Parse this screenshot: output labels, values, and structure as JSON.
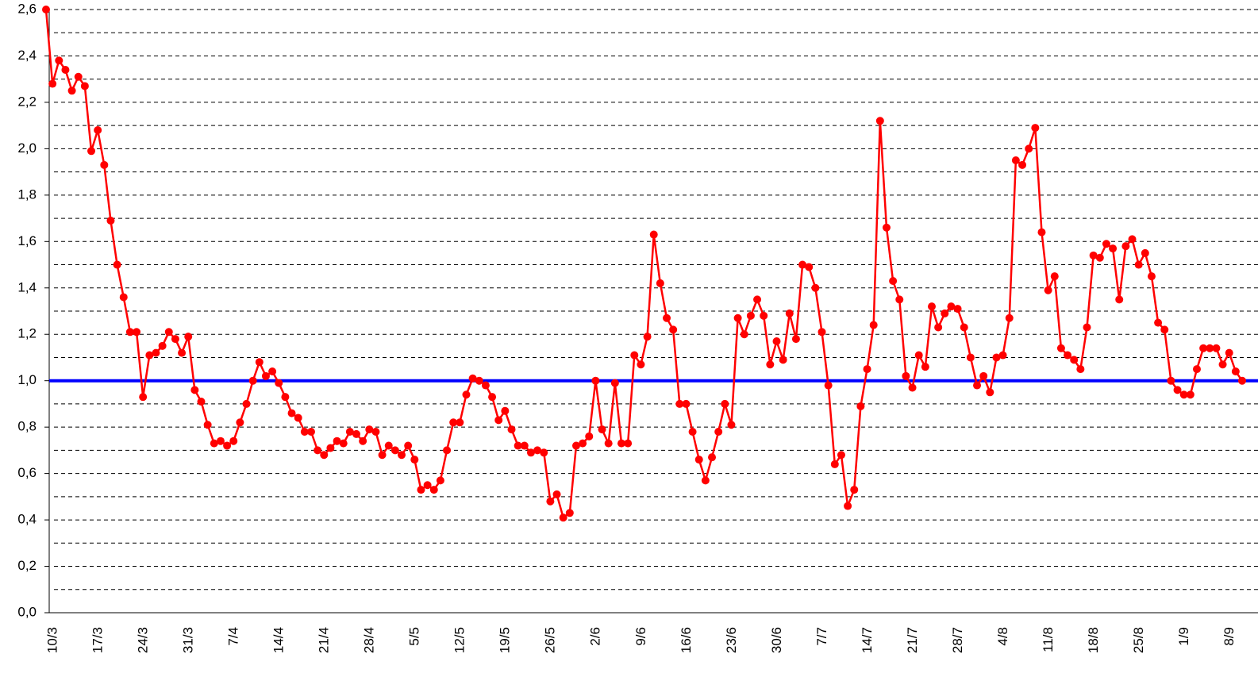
{
  "chart_data": {
    "type": "line",
    "categories": [
      "10/3",
      null,
      null,
      null,
      null,
      null,
      null,
      "17/3",
      null,
      null,
      null,
      null,
      null,
      null,
      "24/3",
      null,
      null,
      null,
      null,
      null,
      null,
      "31/3",
      null,
      null,
      null,
      null,
      null,
      null,
      "7/4",
      null,
      null,
      null,
      null,
      null,
      null,
      "14/4",
      null,
      null,
      null,
      null,
      null,
      null,
      "21/4",
      null,
      null,
      null,
      null,
      null,
      null,
      "28/4",
      null,
      null,
      null,
      null,
      null,
      null,
      "5/5",
      null,
      null,
      null,
      null,
      null,
      null,
      "12/5",
      null,
      null,
      null,
      null,
      null,
      null,
      "19/5",
      null,
      null,
      null,
      null,
      null,
      null,
      "26/5",
      null,
      null,
      null,
      null,
      null,
      null,
      "2/6",
      null,
      null,
      null,
      null,
      null,
      null,
      "9/6",
      null,
      null,
      null,
      null,
      null,
      null,
      "16/6",
      null,
      null,
      null,
      null,
      null,
      null,
      "23/6",
      null,
      null,
      null,
      null,
      null,
      null,
      "30/6",
      null,
      null,
      null,
      null,
      null,
      null,
      "7/7",
      null,
      null,
      null,
      null,
      null,
      null,
      "14/7",
      null,
      null,
      null,
      null,
      null,
      null,
      "21/7",
      null,
      null,
      null,
      null,
      null,
      null,
      "28/7",
      null,
      null,
      null,
      null,
      null,
      null,
      "4/8",
      null,
      null,
      null,
      null,
      null,
      null,
      "11/8",
      null,
      null,
      null,
      null,
      null,
      null,
      "18/8",
      null,
      null,
      null,
      null,
      null,
      null,
      "25/8",
      null,
      null,
      null,
      null,
      null,
      null,
      "1/9",
      null,
      null,
      null,
      null,
      null,
      null,
      "8/9",
      null,
      null,
      null
    ],
    "series": [
      {
        "color": "#ff0000",
        "values": [
          2.6,
          2.28,
          2.38,
          2.34,
          2.25,
          2.31,
          2.27,
          1.99,
          2.08,
          1.93,
          1.69,
          1.5,
          1.36,
          1.21,
          1.21,
          0.93,
          1.11,
          1.12,
          1.15,
          1.21,
          1.18,
          1.12,
          1.19,
          0.96,
          0.91,
          0.81,
          0.73,
          0.74,
          0.72,
          0.74,
          0.82,
          0.9,
          1.0,
          1.08,
          1.02,
          1.04,
          0.99,
          0.93,
          0.86,
          0.84,
          0.78,
          0.78,
          0.7,
          0.68,
          0.71,
          0.74,
          0.73,
          0.78,
          0.77,
          0.74,
          0.79,
          0.78,
          0.68,
          0.72,
          0.7,
          0.68,
          0.72,
          0.66,
          0.53,
          0.55,
          0.53,
          0.57,
          0.7,
          0.82,
          0.82,
          0.94,
          1.01,
          1.0,
          0.98,
          0.93,
          0.83,
          0.87,
          0.79,
          0.72,
          0.72,
          0.69,
          0.7,
          0.69,
          0.48,
          0.51,
          0.41,
          0.43,
          0.72,
          0.73,
          0.76,
          1.0,
          0.79,
          0.73,
          0.99,
          0.73,
          0.73,
          1.11,
          1.07,
          1.19,
          1.63,
          1.42,
          1.27,
          1.22,
          0.9,
          0.9,
          0.78,
          0.66,
          0.57,
          0.67,
          0.78,
          0.9,
          0.81,
          1.27,
          1.2,
          1.28,
          1.35,
          1.28,
          1.07,
          1.17,
          1.09,
          1.29,
          1.18,
          1.5,
          1.49,
          1.4,
          1.21,
          0.98,
          0.64,
          0.68,
          0.46,
          0.53,
          0.89,
          1.05,
          1.24,
          2.12,
          1.66,
          1.43,
          1.35,
          1.02,
          0.97,
          1.11,
          1.06,
          1.32,
          1.23,
          1.29,
          1.32,
          1.31,
          1.23,
          1.1,
          0.98,
          1.02,
          0.95,
          1.1,
          1.11,
          1.27,
          1.95,
          1.93,
          2.0,
          2.09,
          1.64,
          1.39,
          1.45,
          1.14,
          1.11,
          1.09,
          1.05,
          1.23,
          1.54,
          1.53,
          1.59,
          1.57,
          1.35,
          1.58,
          1.61,
          1.5,
          1.55,
          1.45,
          1.25,
          1.22,
          1.0,
          0.96,
          0.94,
          0.94,
          1.05,
          1.14,
          1.14,
          1.14,
          1.07,
          1.12,
          1.04,
          1.0
        ]
      }
    ],
    "hline": {
      "value": 1,
      "color": "#0000ff"
    },
    "ylim": [
      0,
      2.6
    ],
    "yticks": [
      {
        "value": 0,
        "label": "0,0"
      },
      {
        "value": 0.2,
        "label": "0,2"
      },
      {
        "value": 0.4,
        "label": "0,4"
      },
      {
        "value": 0.6,
        "label": "0,6"
      },
      {
        "value": 0.8,
        "label": "0,8"
      },
      {
        "value": 1,
        "label": "1,0"
      },
      {
        "value": 1.2,
        "label": "1,2"
      },
      {
        "value": 1.4,
        "label": "1,4"
      },
      {
        "value": 1.6,
        "label": "1,6"
      },
      {
        "value": 1.8,
        "label": "1,8"
      },
      {
        "value": 2,
        "label": "2,0"
      },
      {
        "value": 2.2,
        "label": "2,2"
      },
      {
        "value": 2.4,
        "label": "2,4"
      },
      {
        "value": 2.6,
        "label": "2,6"
      }
    ],
    "minor_yticks": [
      0.1,
      0.3,
      0.5,
      0.7,
      0.9,
      1.1,
      1.3,
      1.5,
      1.7,
      1.9,
      2.1,
      2.3,
      2.5
    ],
    "grid": true
  }
}
